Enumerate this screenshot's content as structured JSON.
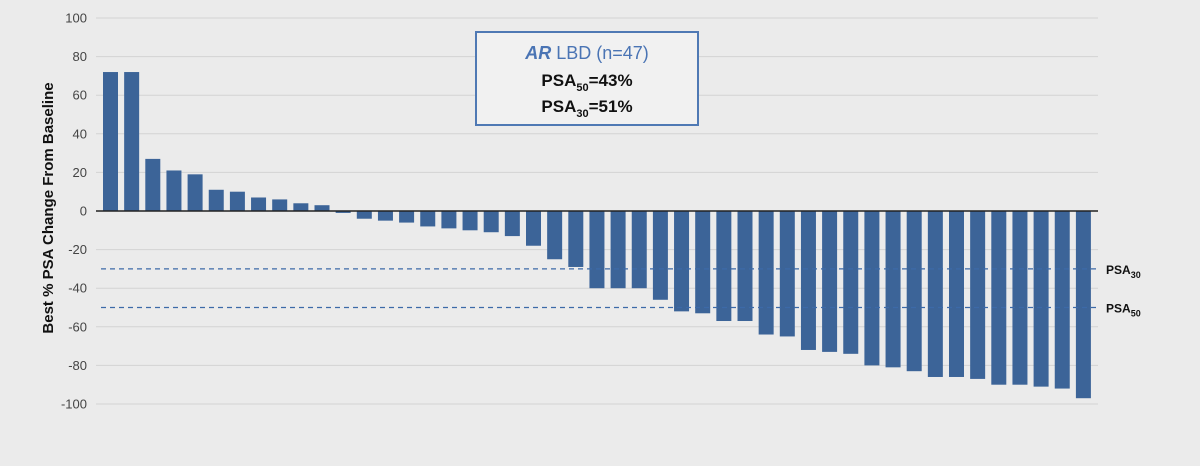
{
  "chart_data": {
    "type": "bar",
    "ylabel": "Best % PSA Change From Baseline",
    "ylim": [
      -100,
      100
    ],
    "yticks": [
      100,
      80,
      60,
      40,
      20,
      0,
      -20,
      -40,
      -60,
      -80,
      -100
    ],
    "grid": true,
    "values": [
      72,
      72,
      27,
      21,
      19,
      11,
      10,
      7,
      6,
      4,
      3,
      -1,
      -4,
      -5,
      -6,
      -8,
      -9,
      -10,
      -11,
      -13,
      -18,
      -25,
      -29,
      -40,
      -40,
      -40,
      -46,
      -52,
      -53,
      -57,
      -57,
      -64,
      -65,
      -72,
      -73,
      -74,
      -80,
      -81,
      -83,
      -86,
      -86,
      -87,
      -90,
      -90,
      -91,
      -92,
      -97
    ],
    "reference_lines": [
      {
        "y": -30,
        "label": "PSA",
        "subscript": "30"
      },
      {
        "y": -50,
        "label": "PSA",
        "subscript": "50"
      }
    ],
    "annotation": {
      "title_italic": "AR",
      "title_rest": " LBD (n=47)",
      "lines": [
        {
          "prefix": "PSA",
          "subscript": "50",
          "suffix": "=43%"
        },
        {
          "prefix": "PSA",
          "subscript": "30",
          "suffix": "=51%"
        }
      ]
    },
    "colors": {
      "bar": "#3c6498",
      "reference_line": "#3c6aa8",
      "grid": "#d3d3d3",
      "box_border": "#4f79b4",
      "box_title": "#4a74b4"
    }
  }
}
